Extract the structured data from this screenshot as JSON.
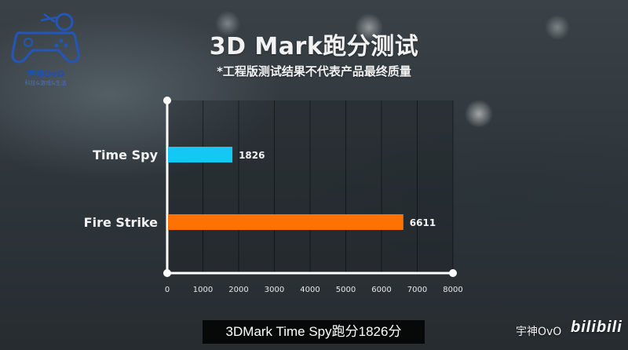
{
  "logo": {
    "name": "宇神OvO",
    "tagline": "科技&游戏&生活"
  },
  "header": {
    "title": "3D Mark跑分测试",
    "subtitle": "*工程版测试结果不代表产品最终质量"
  },
  "chart_data": {
    "type": "bar",
    "orientation": "horizontal",
    "title": "3D Mark跑分测试",
    "categories": [
      "Time Spy",
      "Fire Strike"
    ],
    "values": [
      1826,
      6611
    ],
    "colors": [
      "#14c8f5",
      "#ff7100"
    ],
    "xlim": [
      0,
      8000
    ],
    "xticks": [
      0,
      1000,
      2000,
      3000,
      4000,
      5000,
      6000,
      7000,
      8000
    ],
    "grid": true,
    "xlabel": "",
    "ylabel": ""
  },
  "caption": "3DMark Time Spy跑分1826分",
  "watermark": {
    "name": "宇神OvO",
    "brand": "bilibili"
  }
}
